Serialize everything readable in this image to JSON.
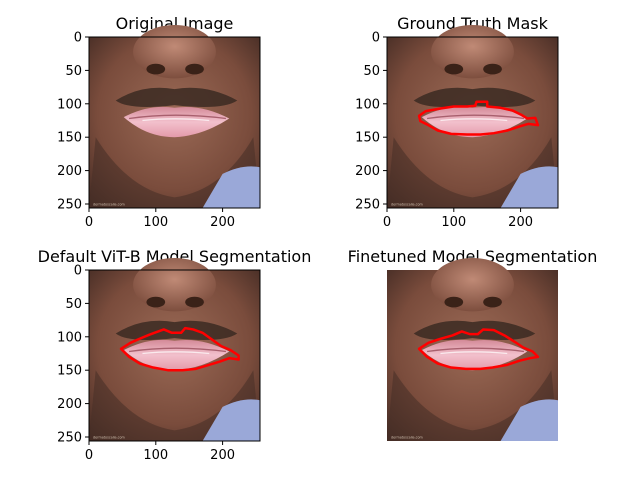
{
  "figure": {
    "panels": [
      {
        "title": "Original Image",
        "show_axes": true,
        "overlay": "none"
      },
      {
        "title": "Ground Truth Mask",
        "show_axes": true,
        "overlay": "ground-truth"
      },
      {
        "title": "Default ViT-B Model Segmentation",
        "show_axes": true,
        "overlay": "vitb"
      },
      {
        "title": "Finetuned Model Segmentation",
        "show_axes": false,
        "overlay": "finetuned"
      }
    ],
    "x_ticks": [
      0,
      100,
      200
    ],
    "y_ticks": [
      0,
      50,
      100,
      150,
      200,
      250
    ],
    "contour_color": "#ff0000",
    "skin_color": "#8a5a48",
    "lip_color": "#e8a0b0",
    "shirt_color": "#9aa8d8"
  },
  "chart_data": {
    "type": "image-grid",
    "image_size": [
      256,
      256
    ],
    "xlim": [
      0,
      256
    ],
    "ylim": [
      256,
      0
    ],
    "x_ticks": [
      0,
      100,
      200
    ],
    "y_ticks": [
      0,
      50,
      100,
      150,
      200,
      250
    ],
    "panels": [
      "Original Image",
      "Ground Truth Mask",
      "Default ViT-B Model Segmentation",
      "Finetuned Model Segmentation"
    ],
    "contours": {
      "ground-truth": [
        [
          48,
          118
        ],
        [
          58,
          111
        ],
        [
          80,
          107
        ],
        [
          100,
          104
        ],
        [
          120,
          104
        ],
        [
          132,
          103
        ],
        [
          134,
          97
        ],
        [
          150,
          97
        ],
        [
          150,
          104
        ],
        [
          170,
          106
        ],
        [
          188,
          110
        ],
        [
          202,
          117
        ],
        [
          210,
          122
        ],
        [
          222,
          121
        ],
        [
          226,
          132
        ],
        [
          212,
          130
        ],
        [
          198,
          134
        ],
        [
          180,
          140
        ],
        [
          160,
          144
        ],
        [
          140,
          146
        ],
        [
          120,
          146
        ],
        [
          96,
          145
        ],
        [
          76,
          140
        ],
        [
          62,
          132
        ],
        [
          50,
          126
        ],
        [
          48,
          118
        ]
      ],
      "vitb": [
        [
          48,
          118
        ],
        [
          62,
          109
        ],
        [
          78,
          102
        ],
        [
          90,
          97
        ],
        [
          98,
          94
        ],
        [
          112,
          89
        ],
        [
          124,
          94
        ],
        [
          138,
          94
        ],
        [
          144,
          87
        ],
        [
          156,
          89
        ],
        [
          170,
          94
        ],
        [
          184,
          104
        ],
        [
          198,
          114
        ],
        [
          212,
          120
        ],
        [
          224,
          128
        ],
        [
          224,
          134
        ],
        [
          210,
          132
        ],
        [
          196,
          137
        ],
        [
          180,
          142
        ],
        [
          160,
          148
        ],
        [
          140,
          150
        ],
        [
          118,
          150
        ],
        [
          96,
          146
        ],
        [
          76,
          140
        ],
        [
          60,
          130
        ],
        [
          48,
          118
        ]
      ],
      "finetuned": [
        [
          48,
          118
        ],
        [
          62,
          109
        ],
        [
          80,
          103
        ],
        [
          98,
          98
        ],
        [
          112,
          92
        ],
        [
          124,
          96
        ],
        [
          136,
          96
        ],
        [
          144,
          89
        ],
        [
          160,
          90
        ],
        [
          176,
          98
        ],
        [
          192,
          108
        ],
        [
          204,
          116
        ],
        [
          218,
          122
        ],
        [
          226,
          130
        ],
        [
          214,
          132
        ],
        [
          198,
          136
        ],
        [
          180,
          142
        ],
        [
          158,
          146
        ],
        [
          140,
          148
        ],
        [
          118,
          148
        ],
        [
          96,
          146
        ],
        [
          76,
          140
        ],
        [
          60,
          130
        ],
        [
          48,
          118
        ]
      ]
    }
  }
}
